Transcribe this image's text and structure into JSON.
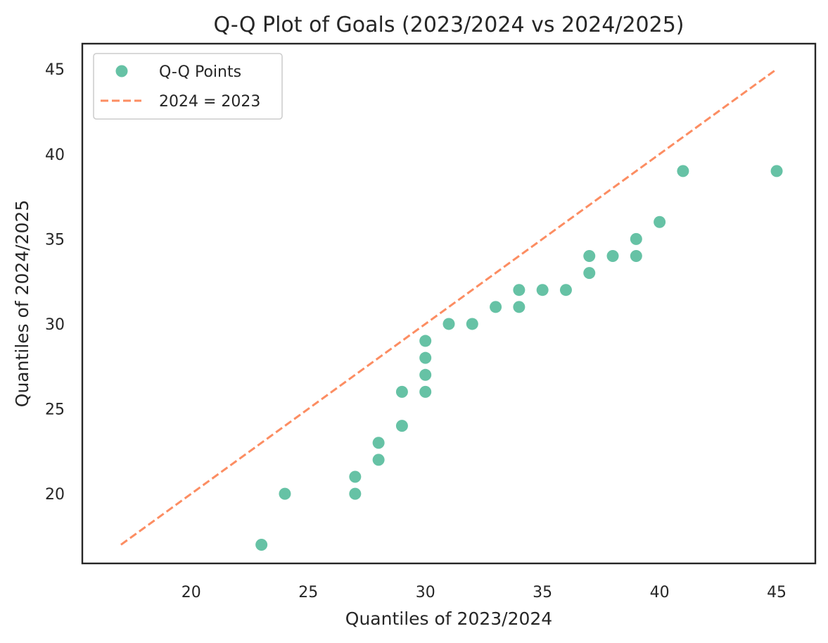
{
  "chart_data": {
    "type": "scatter",
    "title": "Q-Q Plot of Goals (2023/2024 vs 2024/2025)",
    "xlabel": "Quantiles of 2023/2024",
    "ylabel": "Quantiles of 2024/2025",
    "xlim": [
      15.35,
      46.65
    ],
    "ylim": [
      15.9,
      46.5
    ],
    "xticks": [
      20,
      25,
      30,
      35,
      40,
      45
    ],
    "yticks": [
      20,
      25,
      30,
      35,
      40,
      45
    ],
    "grid": false,
    "legend_position": "top-left",
    "series": [
      {
        "name": "Q-Q Points",
        "kind": "scatter",
        "color": "#66c2a5",
        "points": [
          [
            23,
            17
          ],
          [
            24,
            20
          ],
          [
            27,
            20
          ],
          [
            27,
            21
          ],
          [
            28,
            22
          ],
          [
            28,
            23
          ],
          [
            29,
            24
          ],
          [
            29,
            26
          ],
          [
            30,
            26
          ],
          [
            30,
            27
          ],
          [
            30,
            28
          ],
          [
            30,
            29
          ],
          [
            31,
            30
          ],
          [
            32,
            30
          ],
          [
            33,
            31
          ],
          [
            34,
            31
          ],
          [
            34,
            32
          ],
          [
            35,
            32
          ],
          [
            36,
            32
          ],
          [
            37,
            33
          ],
          [
            37,
            34
          ],
          [
            38,
            34
          ],
          [
            39,
            34
          ],
          [
            39,
            35
          ],
          [
            40,
            36
          ],
          [
            41,
            39
          ],
          [
            45,
            39
          ]
        ]
      },
      {
        "name": "2024 = 2023",
        "kind": "line",
        "style": "dashed",
        "color": "#fc8d62",
        "points": [
          [
            17,
            17
          ],
          [
            45,
            45
          ]
        ]
      }
    ]
  }
}
